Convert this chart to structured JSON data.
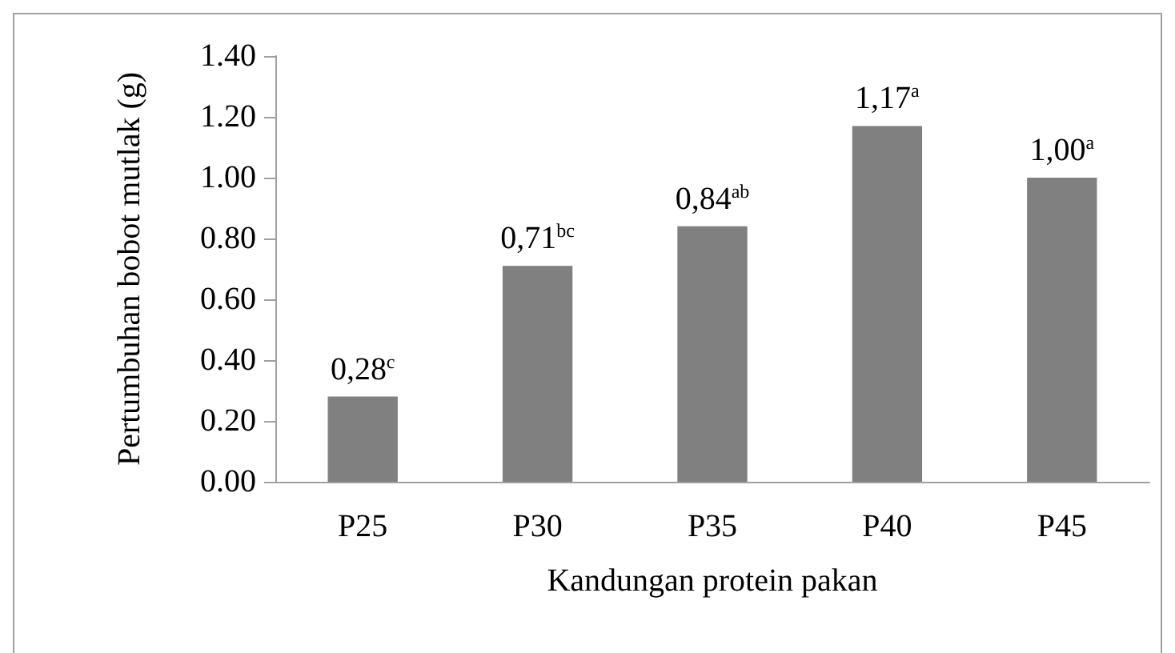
{
  "chart_data": {
    "type": "bar",
    "xlabel": "Kandungan protein pakan",
    "ylabel": "Pertumbuhan bobot mutlak (g)",
    "categories": [
      "P25",
      "P30",
      "P35",
      "P40",
      "P45"
    ],
    "values": [
      0.28,
      0.71,
      0.84,
      1.17,
      1.0
    ],
    "value_labels": [
      "0,28$^{c}$",
      "0,71$^{bc}$",
      "0,84$^{ab}$",
      "1,17$^{a}$",
      "1,00$^{a}$"
    ],
    "color": "#808080",
    "ylim": [
      0,
      1.4
    ],
    "yticks": [
      {
        "value": 0,
        "label": "0.00"
      },
      {
        "value": 0.2,
        "label": "0.20"
      },
      {
        "value": 0.4,
        "label": "0.40"
      },
      {
        "value": 0.6,
        "label": "0.60"
      },
      {
        "value": 0.8,
        "label": "0.80"
      },
      {
        "value": 1.0,
        "label": "1.00"
      },
      {
        "value": 1.2,
        "label": "1.20"
      },
      {
        "value": 1.4,
        "label": "1.40"
      }
    ],
    "grid": false
  }
}
